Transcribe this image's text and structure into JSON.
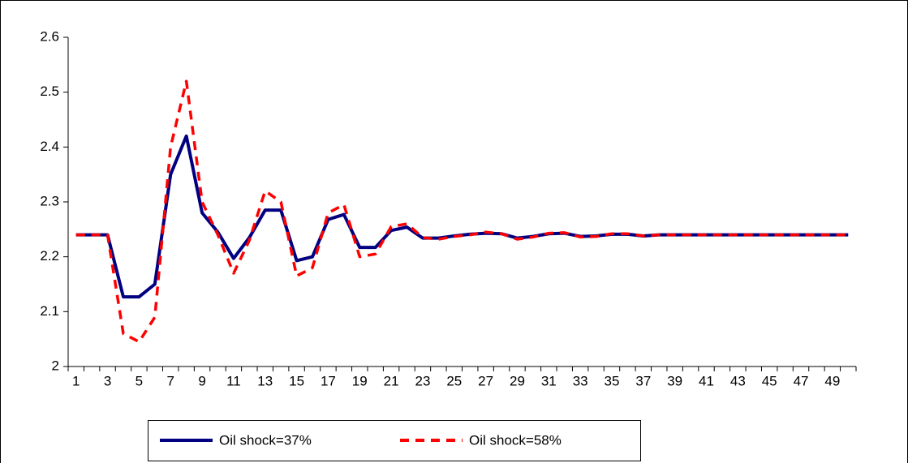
{
  "chart_data": {
    "type": "line",
    "categories": [
      1,
      null,
      3,
      null,
      5,
      null,
      7,
      null,
      9,
      null,
      11,
      null,
      13,
      null,
      15,
      null,
      17,
      null,
      19,
      null,
      21,
      null,
      23,
      null,
      25,
      null,
      27,
      null,
      29,
      null,
      31,
      null,
      33,
      null,
      35,
      null,
      37,
      null,
      39,
      null,
      41,
      null,
      43,
      null,
      45,
      null,
      47,
      null,
      49,
      null
    ],
    "series": [
      {
        "name": "Oil shock=37%",
        "color": "#000080",
        "dash": false,
        "values": [
          2.24,
          2.24,
          2.24,
          2.127,
          2.127,
          2.15,
          2.35,
          2.42,
          2.28,
          2.245,
          2.197,
          2.235,
          2.285,
          2.285,
          2.193,
          2.2,
          2.268,
          2.277,
          2.217,
          2.217,
          2.248,
          2.254,
          2.234,
          2.234,
          2.238,
          2.241,
          2.243,
          2.242,
          2.234,
          2.237,
          2.242,
          2.243,
          2.237,
          2.238,
          2.241,
          2.241,
          2.238,
          2.24,
          2.24,
          2.24,
          2.24,
          2.24,
          2.24,
          2.24,
          2.24,
          2.24,
          2.24,
          2.24,
          2.24,
          2.24
        ]
      },
      {
        "name": "Oil shock=58%",
        "color": "#ff0000",
        "dash": true,
        "values": [
          2.24,
          2.24,
          2.24,
          2.06,
          2.045,
          2.09,
          2.4,
          2.52,
          2.3,
          2.24,
          2.17,
          2.23,
          2.32,
          2.3,
          2.165,
          2.18,
          2.28,
          2.295,
          2.2,
          2.205,
          2.255,
          2.26,
          2.235,
          2.232,
          2.237,
          2.24,
          2.245,
          2.242,
          2.232,
          2.236,
          2.243,
          2.244,
          2.236,
          2.237,
          2.242,
          2.242,
          2.238,
          2.24,
          2.24,
          2.24,
          2.24,
          2.24,
          2.24,
          2.24,
          2.24,
          2.24,
          2.24,
          2.24,
          2.24,
          2.24
        ]
      }
    ],
    "ylim": [
      2,
      2.6
    ],
    "yticks": [
      2,
      2.1,
      2.2,
      2.3,
      2.4,
      2.5,
      2.6
    ],
    "grid": false,
    "legend": "bottom"
  }
}
